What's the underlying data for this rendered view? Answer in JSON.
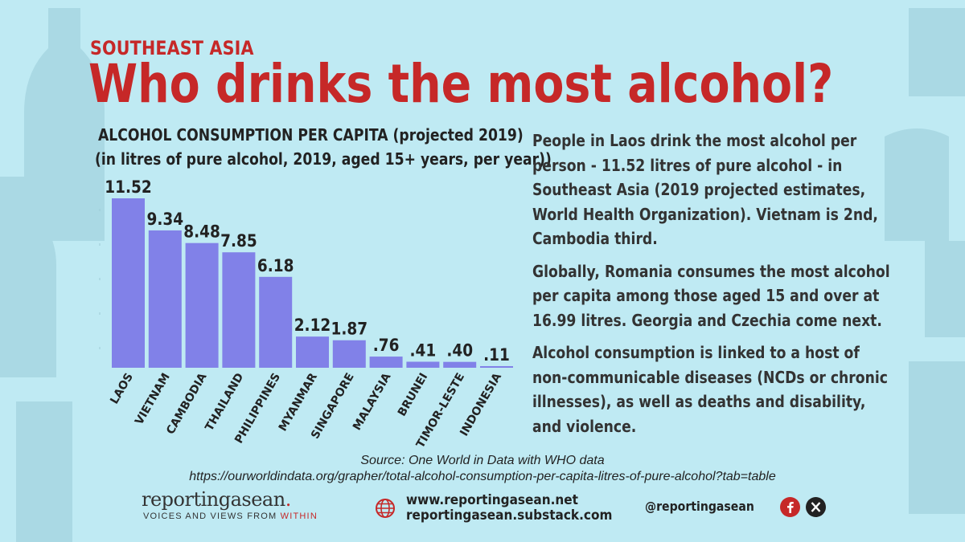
{
  "kicker": "SOUTHEAST ASIA",
  "headline": "Who drinks the most alcohol?",
  "chart_data": {
    "type": "bar",
    "title": "ALCOHOL CONSUMPTION PER CAPITA (projected 2019)",
    "subtitle": "(in litres of pure alcohol, 2019, aged 15+ years, per year))",
    "categories": [
      "LAOS",
      "VIETNAM",
      "CAMBODIA",
      "THAILAND",
      "PHILIPPINES",
      "MYANMAR",
      "SINGAPORE",
      "MALAYSIA",
      "BRUNEI",
      "TIMOR-LESTE",
      "INDONESIA"
    ],
    "values": [
      11.52,
      9.34,
      8.48,
      7.85,
      6.18,
      2.12,
      1.87,
      0.76,
      0.41,
      0.4,
      0.11
    ],
    "value_labels": [
      "11.52",
      "9.34",
      "8.48",
      "7.85",
      "6.18",
      "2.12",
      "1.87",
      ".76",
      ".41",
      ".40",
      ".11"
    ],
    "ylim": [
      0,
      11.52
    ],
    "bar_color": "#8181e8",
    "grid": false,
    "legend": "none"
  },
  "paragraphs": [
    [
      "People in Laos drink the most alcohol per",
      "person -  11.52 litres of pure alcohol - in",
      "Southeast Asia (2019 projected estimates,",
      "World Health Organization).  Vietnam is 2nd,",
      "Cambodia third."
    ],
    [
      "Globally, Romania consumes the most alcohol",
      "per capita among those aged 15 and over at",
      "16.99 litres. Georgia and Czechia come next."
    ],
    [
      "Alcohol consumption is linked to a host of",
      "non-communicable diseases (NCDs or chronic",
      "illnesses), as well as deaths and disability,",
      "and violence."
    ]
  ],
  "source": {
    "line1": "Source: One World in Data with WHO data",
    "line2": "https://ourworldindata.org/grapher/total-alcohol-consumption-per-capita-litres-of-pure-alcohol?tab=table"
  },
  "footer": {
    "logo_main": "reportingasean",
    "logo_dot": ".",
    "tagline_a": "VOICES AND VIEWS FROM ",
    "tagline_b": "WITHIN",
    "website": "www.reportingasean.net",
    "substack": "reportingasean.substack.com",
    "handle": "@reportingasean",
    "globe_icon": "globe-icon",
    "facebook_icon": "facebook-icon",
    "x_icon": "x-icon"
  },
  "colors": {
    "accent": "#c62828",
    "background": "#bfeaf3",
    "bars": "#8181e8"
  }
}
